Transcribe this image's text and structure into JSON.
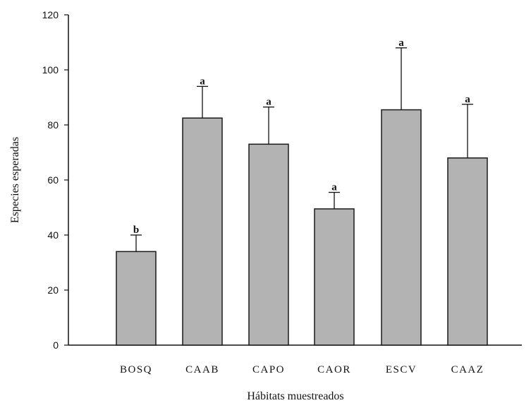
{
  "chart_data": {
    "type": "bar",
    "categories": [
      "BOSQ",
      "CAAB",
      "CAPO",
      "CAOR",
      "ESCV",
      "CAAZ"
    ],
    "values": [
      34,
      82.5,
      73,
      49.5,
      85.5,
      68
    ],
    "error_upper": [
      40,
      94,
      86.5,
      55.5,
      108,
      87.5
    ],
    "significance_letters": [
      "b",
      "a",
      "a",
      "a",
      "a",
      "a"
    ],
    "xlabel": "Hábitats muestreados",
    "ylabel": "Especies esperadas",
    "ylim": [
      0,
      120
    ],
    "yticks": [
      "0",
      "20",
      "40",
      "60",
      "80",
      "100",
      "120"
    ],
    "grid": false,
    "bar_color": "#b3b3b3",
    "bar_edge_color": "#1a1a1a"
  }
}
